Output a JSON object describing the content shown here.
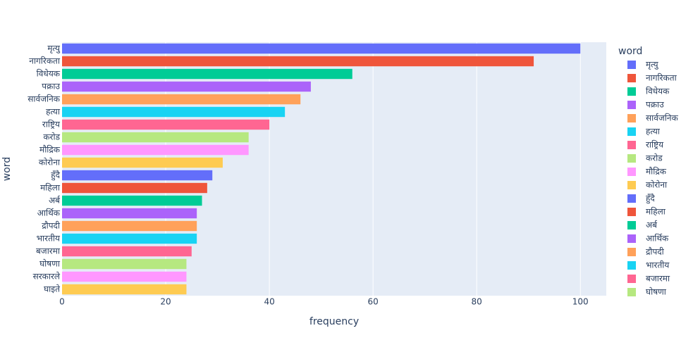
{
  "chart_data": {
    "type": "bar",
    "orientation": "horizontal",
    "x_label": "frequency",
    "y_label": "word",
    "legend": {
      "title": "word",
      "position": "right"
    },
    "categories": [
      "मृत्यु",
      "नागरिकता",
      "विधेयक",
      "पक्राउ",
      "सार्वजनिक",
      "हत्या",
      "राष्ट्रिय",
      "करोड",
      "मौद्रिक",
      "कोरोना",
      "हुँदै",
      "महिला",
      "अर्ब",
      "आर्थिक",
      "द्रौपदी",
      "भारतीय",
      "बजारमा",
      "घोषणा",
      "सरकारले",
      "घाइते"
    ],
    "values": [
      100,
      91,
      56,
      48,
      46,
      43,
      40,
      36,
      36,
      31,
      29,
      28,
      27,
      26,
      26,
      26,
      25,
      24,
      24,
      24
    ],
    "colors": [
      "#636efa",
      "#EF553B",
      "#00cc96",
      "#ab63fa",
      "#FFA15A",
      "#19d3f3",
      "#FF6692",
      "#B6E880",
      "#FF97FF",
      "#FECB52",
      "#636efa",
      "#EF553B",
      "#00cc96",
      "#ab63fa",
      "#FFA15A",
      "#19d3f3",
      "#FF6692",
      "#B6E880",
      "#FF97FF",
      "#FECB52"
    ],
    "xlim": [
      0,
      105
    ],
    "xticks": [
      0,
      20,
      40,
      60,
      80,
      100
    ],
    "grid": true
  }
}
